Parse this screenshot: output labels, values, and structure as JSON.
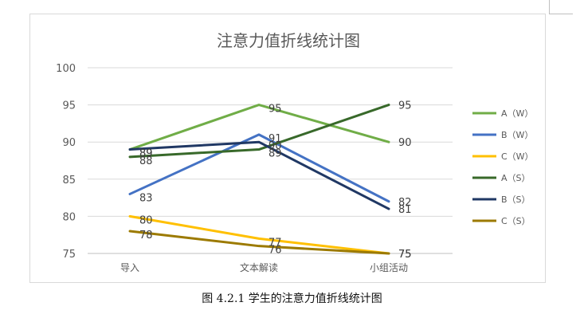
{
  "chart_data": {
    "type": "line",
    "title": "注意力值折线统计图",
    "categories": [
      "导入",
      "文本解读",
      "小组活动"
    ],
    "ylim": [
      75,
      100
    ],
    "yticks": [
      75,
      80,
      85,
      90,
      95,
      100
    ],
    "grid": true,
    "legend_position": "right",
    "series": [
      {
        "name": "A（W）",
        "values": [
          89,
          95,
          90
        ],
        "color": "#70ad47"
      },
      {
        "name": "B（W）",
        "values": [
          83,
          91,
          82
        ],
        "color": "#4472c4"
      },
      {
        "name": "C（W）",
        "values": [
          80,
          77,
          75
        ],
        "color": "#ffc000"
      },
      {
        "name": "A（S）",
        "values": [
          88,
          89,
          95
        ],
        "color": "#38692a"
      },
      {
        "name": "B（S）",
        "values": [
          89,
          90,
          81
        ],
        "color": "#203864"
      },
      {
        "name": "C（S）",
        "values": [
          78,
          76,
          75
        ],
        "color": "#9c7a00"
      }
    ]
  },
  "caption": "图 4.2.1  学生的注意力值折线统计图"
}
